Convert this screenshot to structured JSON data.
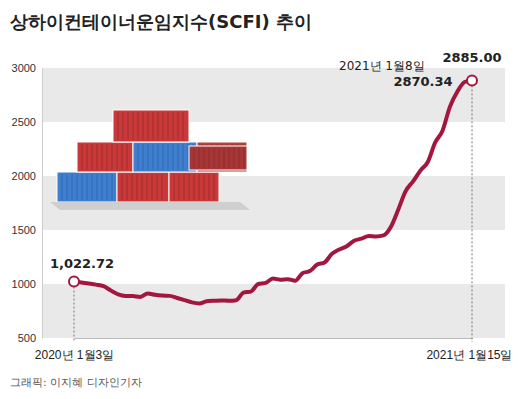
{
  "chart_data": {
    "type": "line",
    "title": "상하이컨테이너운임지수(SCFI) 추이",
    "caption": "그래픽: 이지혜 디자인기자",
    "categories": [
      "2020년 1월3일",
      null,
      null,
      null,
      null,
      null,
      null,
      null,
      null,
      null,
      null,
      null,
      null,
      null,
      null,
      null,
      null,
      null,
      null,
      null,
      null,
      null,
      null,
      null,
      null,
      null,
      null,
      null,
      null,
      null,
      null,
      null,
      null,
      null,
      null,
      null,
      null,
      null,
      null,
      null,
      null,
      null,
      null,
      null,
      null,
      null,
      null,
      null,
      null,
      null,
      null,
      null,
      null,
      null,
      "2021년 1월15일"
    ],
    "values": [
      1022.72,
      1013,
      1004,
      994,
      980,
      940,
      905,
      890,
      888,
      880,
      912,
      900,
      893,
      890,
      870,
      850,
      830,
      820,
      840,
      845,
      848,
      845,
      850,
      920,
      930,
      1000,
      1010,
      1050,
      1040,
      1045,
      1030,
      1100,
      1120,
      1180,
      1200,
      1280,
      1320,
      1350,
      1400,
      1420,
      1445,
      1440,
      1450,
      1530,
      1690,
      1860,
      1950,
      2050,
      2130,
      2310,
      2420,
      2640,
      2780,
      2870.34,
      2885.0
    ],
    "value_labels": [
      "1,022.72",
      null,
      null,
      null,
      null,
      null,
      null,
      null,
      null,
      null,
      null,
      null,
      null,
      null,
      null,
      null,
      null,
      null,
      null,
      null,
      null,
      null,
      null,
      null,
      null,
      null,
      null,
      null,
      null,
      null,
      null,
      null,
      null,
      null,
      null,
      null,
      null,
      null,
      null,
      null,
      null,
      null,
      null,
      null,
      null,
      null,
      null,
      null,
      null,
      null,
      null,
      null,
      null,
      "2870.34",
      "2885.00"
    ],
    "annotations": [
      "2021년 1월8일"
    ],
    "color": "#a3173f",
    "marker": "circle",
    "ylim": [
      500,
      3000
    ],
    "yticks": [
      500,
      1000,
      1500,
      2000,
      2500,
      3000
    ],
    "grid": true
  }
}
